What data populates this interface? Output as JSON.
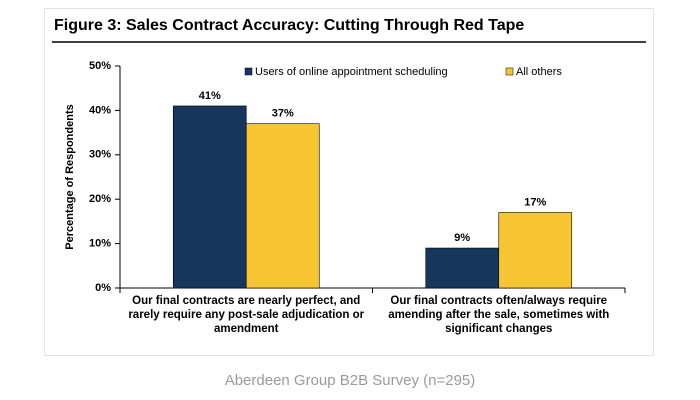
{
  "chart_data": {
    "type": "bar",
    "title": "Figure 3: Sales Contract Accuracy: Cutting Through Red Tape",
    "y_label": "Percentage of Respondents",
    "caption": "Aberdeen Group B2B Survey (n=295)",
    "categories": [
      "Our final contracts are nearly perfect, and rarely require any post-sale adjudication or amendment",
      "Our final contracts often/always require amending after the sale, sometimes with significant changes"
    ],
    "series": [
      {
        "name": "Users of online appointment scheduling",
        "color": "#17365d",
        "values": [
          41,
          9
        ],
        "value_labels": [
          "41%",
          "9%"
        ]
      },
      {
        "name": "All others",
        "color": "#f6c531",
        "values": [
          37,
          17
        ],
        "value_labels": [
          "37%",
          "17%"
        ]
      }
    ],
    "ylim": [
      0,
      50
    ],
    "yticks": [
      {
        "value": 0,
        "label": "0%"
      },
      {
        "value": 10,
        "label": "10%"
      },
      {
        "value": 20,
        "label": "20%"
      },
      {
        "value": 30,
        "label": "30%"
      },
      {
        "value": 40,
        "label": "40%"
      },
      {
        "value": 50,
        "label": "50%"
      }
    ],
    "grid": false,
    "legend": "top"
  }
}
